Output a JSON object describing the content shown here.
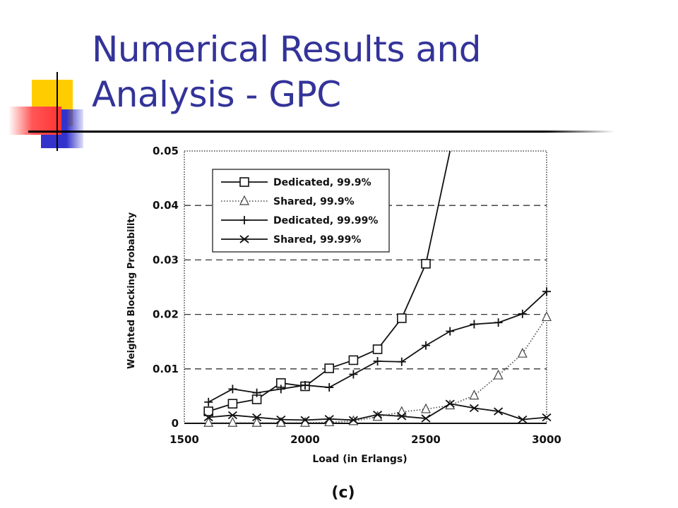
{
  "slide": {
    "title_line1": "Numerical Results and",
    "title_line2": "Analysis - GPC"
  },
  "colors": {
    "title": "#333399",
    "accent_yellow": "#ffcc00",
    "accent_blue": "#3333cc",
    "accent_red": "#ff3333"
  },
  "chart_data": {
    "type": "line",
    "caption": "(c)",
    "xlabel": "Load (in Erlangs)",
    "ylabel": "Weighted Blocking Probability",
    "xlim": [
      1500,
      3000
    ],
    "ylim": [
      0,
      0.05
    ],
    "x_ticks": [
      1500,
      2000,
      2500,
      3000
    ],
    "y_ticks": [
      0,
      0.01,
      0.02,
      0.03,
      0.04,
      0.05
    ],
    "x_tick_labels": [
      "1500",
      "2000",
      "2500",
      "3000"
    ],
    "y_tick_labels": [
      "0",
      "0.01",
      "0.02",
      "0.03",
      "0.04",
      "0.05"
    ],
    "grid": "horizontal dashed",
    "legend_position": "top-left",
    "series": [
      {
        "name": "Dedicated, 99.9%",
        "marker": "square",
        "line": "solid",
        "x": [
          1600,
          1700,
          1800,
          1900,
          2000,
          2100,
          2200,
          2300,
          2400,
          2500,
          2600
        ],
        "y": [
          0.0022,
          0.0036,
          0.0044,
          0.0074,
          0.0068,
          0.0101,
          0.0116,
          0.0136,
          0.0193,
          0.0293,
          0.05
        ]
      },
      {
        "name": "Shared, 99.9%",
        "marker": "triangle",
        "line": "dotted",
        "x": [
          1600,
          1700,
          1800,
          1900,
          2000,
          2100,
          2200,
          2300,
          2400,
          2500,
          2600,
          2700,
          2800,
          2900,
          3000
        ],
        "y": [
          0.0001,
          0.0001,
          0.0001,
          0.0001,
          0.0001,
          0.0002,
          0.0004,
          0.0012,
          0.0021,
          0.0026,
          0.0033,
          0.0051,
          0.0088,
          0.0128,
          0.0195
        ]
      },
      {
        "name": "Dedicated, 99.99%",
        "marker": "plus",
        "line": "solid",
        "x": [
          1600,
          1700,
          1800,
          1900,
          2000,
          2100,
          2200,
          2300,
          2400,
          2500,
          2600,
          2700,
          2800,
          2900,
          3000
        ],
        "y": [
          0.0039,
          0.0063,
          0.0056,
          0.0063,
          0.007,
          0.0066,
          0.009,
          0.0114,
          0.0113,
          0.0143,
          0.0169,
          0.0182,
          0.0185,
          0.0201,
          0.0242
        ]
      },
      {
        "name": "Shared, 99.99%",
        "marker": "x",
        "line": "solid",
        "x": [
          1600,
          1700,
          1800,
          1900,
          2000,
          2100,
          2200,
          2300,
          2400,
          2500,
          2600,
          2700,
          2800,
          2900,
          3000
        ],
        "y": [
          0.0011,
          0.0015,
          0.0011,
          0.0007,
          0.0006,
          0.0008,
          0.0006,
          0.0016,
          0.0013,
          0.0009,
          0.0036,
          0.0028,
          0.0022,
          0.0007,
          0.0011
        ]
      }
    ]
  }
}
